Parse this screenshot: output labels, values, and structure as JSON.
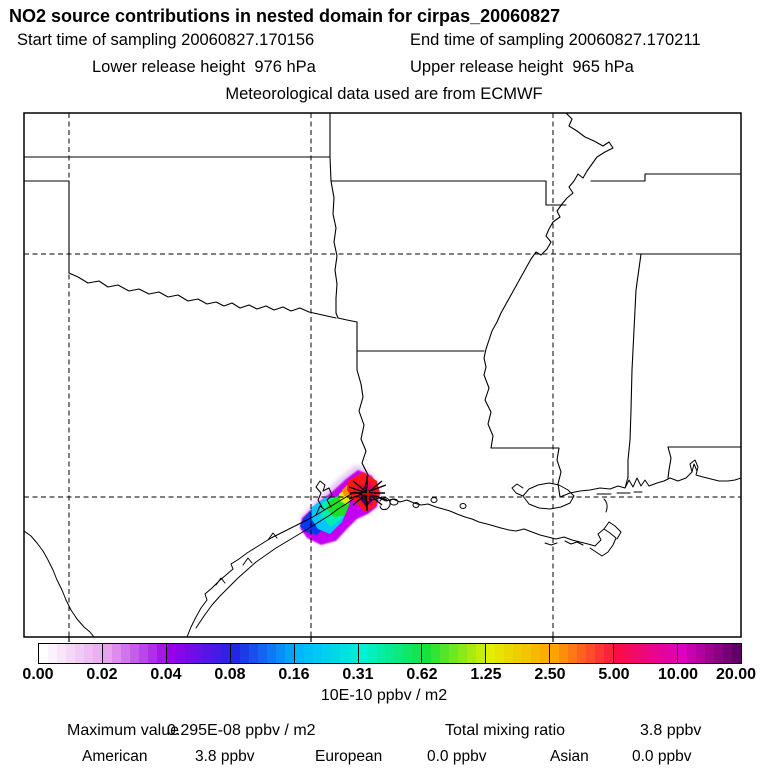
{
  "header": {
    "title": "NO2 source contributions in nested domain for cirpas_20060827",
    "start_time": "Start time of sampling 20060827.170156",
    "end_time": "End time of sampling 20060827.170211",
    "lower_release": "Lower release height  976 hPa",
    "upper_release": "Upper release height  965 hPa",
    "met_source": "Meteorological data used are from ECMWF"
  },
  "map": {
    "line_color": "#000000",
    "background": "#ffffff",
    "marker": {
      "name": "sampling-location-star",
      "star_color": "#000000",
      "cross_color": "#f30000"
    }
  },
  "plume": {
    "colors": {
      "haze": "#d9a8f0",
      "fringe": "#c303ef",
      "blue": "#0837f0",
      "cyan": "#00c8ff",
      "teal": "#00eeb2",
      "green": "#1ede26",
      "yellow": "#e3f000",
      "orange": "#ff9100",
      "red": "#ff1616",
      "crimson": "#f2004d",
      "magenta": "#cf0095",
      "core": "#40003c"
    }
  },
  "colorbar": {
    "ticks": [
      "0.00",
      "0.02",
      "0.04",
      "0.08",
      "0.16",
      "0.31",
      "0.62",
      "1.25",
      "2.50",
      "5.00",
      "10.00",
      "20.00"
    ],
    "anchors": [
      "#ffffff",
      "#e8a3ee",
      "#9a00e8",
      "#2127e2",
      "#00b6ff",
      "#00f2d4",
      "#16e23a",
      "#e2ef00",
      "#ffa300",
      "#fa0c49",
      "#dc00c0",
      "#4b0055"
    ],
    "steps_per_cell": 7,
    "units": "10E-10 ppbv / m2"
  },
  "footer": {
    "max_label": "Maximum value",
    "max_value": "0.295E-08 ppbv / m2",
    "ratio_label": "Total mixing ratio",
    "ratio_value": "3.8 ppbv",
    "contributions": [
      {
        "name": "American",
        "value": "3.8 ppbv"
      },
      {
        "name": "European",
        "value": "0.0 ppbv"
      },
      {
        "name": "Asian",
        "value": "0.0 ppbv"
      }
    ]
  },
  "chart_data": {
    "type": "heatmap",
    "title": "NO2 source contributions in nested domain for cirpas_20060827",
    "colorbar": {
      "tick_values": [
        0.0,
        0.02,
        0.04,
        0.08,
        0.16,
        0.31,
        0.62,
        1.25,
        2.5,
        5.0,
        10.0,
        20.0
      ],
      "units": "10E-10 ppbv / m2"
    },
    "annotations": {
      "start_time_of_sampling": "20060827.170156",
      "end_time_of_sampling": "20060827.170211",
      "lower_release_height_hPa": 976,
      "upper_release_height_hPa": 965,
      "meteorology_source": "ECMWF",
      "maximum_value": "0.295E-08 ppbv / m2",
      "total_mixing_ratio_ppbv": 3.8,
      "source_contributions_ppbv": {
        "American": 3.8,
        "European": 0.0,
        "Asian": 0.0
      }
    },
    "map_overlay": "NO2 contribution plume on the Texas-Louisiana Gulf coast; sampling location marked with an asterisk; dashed lat-lon gridlines; US state borders and coastline"
  }
}
